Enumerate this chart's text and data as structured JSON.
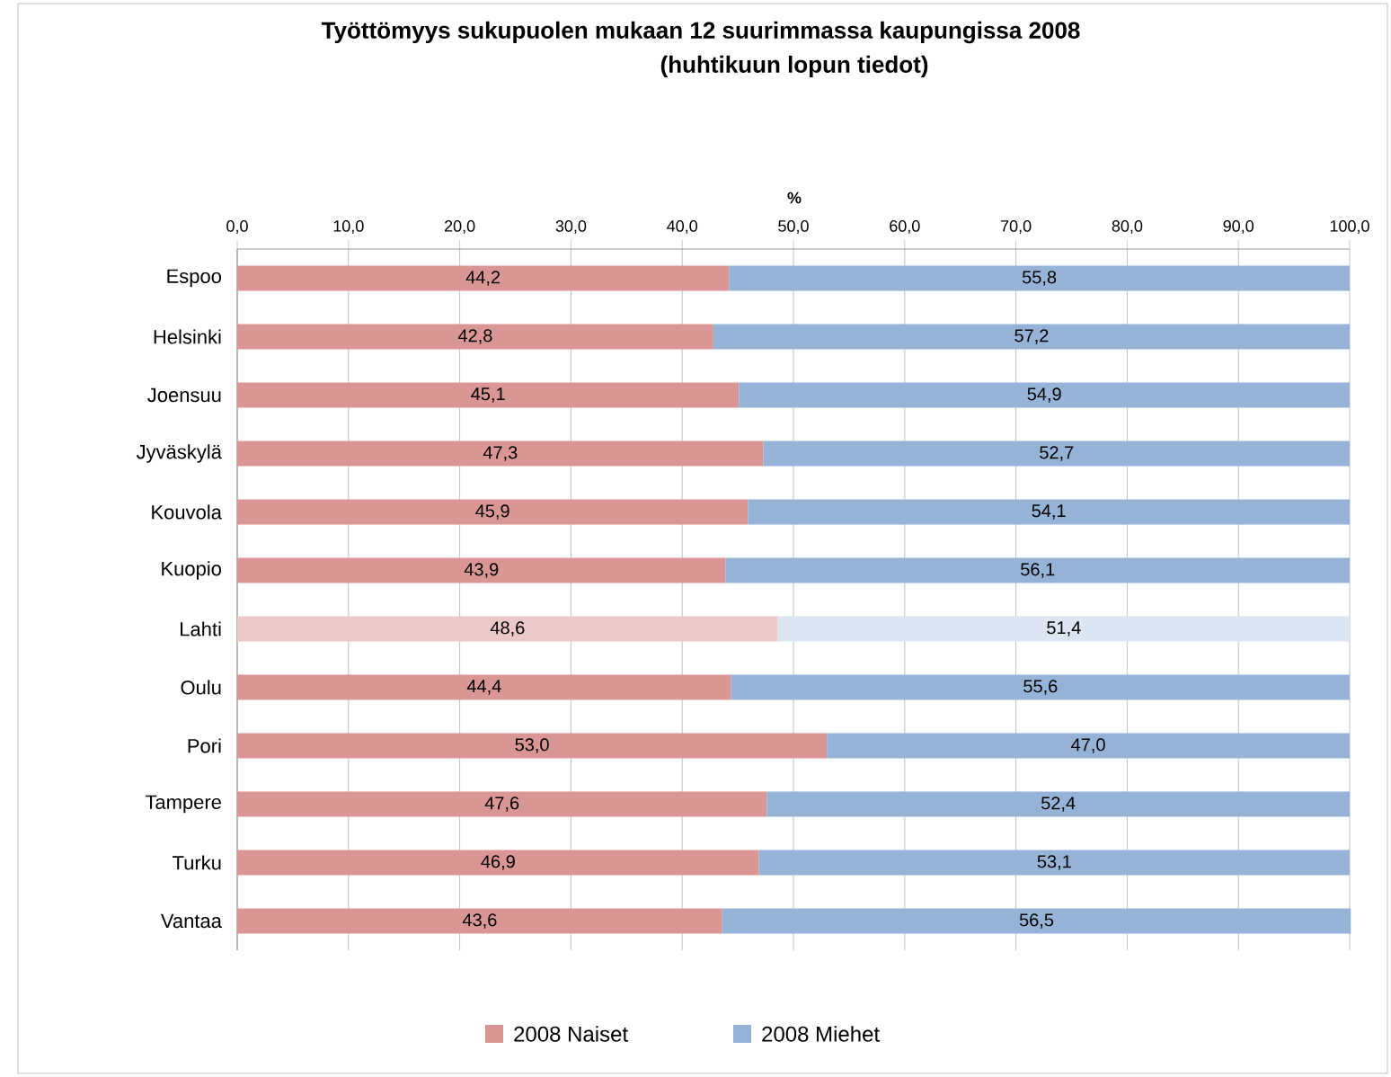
{
  "chart_data": {
    "type": "bar",
    "orientation": "horizontal",
    "stacked": true,
    "title": "Työttömyys sukupuolen mukaan 12 suurimmassa kaupungissa 2008",
    "subtitle": "(huhtikuun lopun tiedot)",
    "xlabel": "%",
    "categories": [
      "Espoo",
      "Helsinki",
      "Joensuu",
      "Jyväskylä",
      "Kouvola",
      "Kuopio",
      "Lahti",
      "Oulu",
      "Pori",
      "Tampere",
      "Turku",
      "Vantaa"
    ],
    "series": [
      {
        "name": "2008 Naiset",
        "color": "#d99694",
        "colors": [
          "#d99694",
          "#d99694",
          "#d99694",
          "#d99694",
          "#d99694",
          "#d99694",
          "#ecc9c8",
          "#d99694",
          "#d99694",
          "#d99694",
          "#d99694",
          "#d99694"
        ],
        "values": [
          44.2,
          42.8,
          45.1,
          47.3,
          45.9,
          43.9,
          48.6,
          44.4,
          53.0,
          47.6,
          46.9,
          43.6
        ],
        "value_labels": [
          "44,2",
          "42,8",
          "45,1",
          "47,3",
          "45,9",
          "43,9",
          "48,6",
          "44,4",
          "53,0",
          "47,6",
          "46,9",
          "43,6"
        ]
      },
      {
        "name": "2008 Miehet",
        "color": "#95b3d7",
        "colors": [
          "#95b3d7",
          "#95b3d7",
          "#95b3d7",
          "#95b3d7",
          "#95b3d7",
          "#95b3d7",
          "#dbe6f2",
          "#95b3d7",
          "#95b3d7",
          "#95b3d7",
          "#95b3d7",
          "#95b3d7"
        ],
        "values": [
          55.8,
          57.2,
          54.9,
          52.7,
          54.1,
          56.1,
          51.4,
          55.6,
          47.0,
          52.4,
          53.1,
          56.5
        ],
        "value_labels": [
          "55,8",
          "57,2",
          "54,9",
          "52,7",
          "54,1",
          "56,1",
          "51,4",
          "55,6",
          "47,0",
          "52,4",
          "53,1",
          "56,5"
        ]
      }
    ],
    "xlim": [
      0,
      100
    ],
    "xticks": [
      {
        "value": 0,
        "label": "0,0"
      },
      {
        "value": 10,
        "label": "10,0"
      },
      {
        "value": 20,
        "label": "20,0"
      },
      {
        "value": 30,
        "label": "30,0"
      },
      {
        "value": 40,
        "label": "40,0"
      },
      {
        "value": 50,
        "label": "50,0"
      },
      {
        "value": 60,
        "label": "60,0"
      },
      {
        "value": 70,
        "label": "70,0"
      },
      {
        "value": 80,
        "label": "80,0"
      },
      {
        "value": 90,
        "label": "90,0"
      },
      {
        "value": 100,
        "label": "100,0"
      }
    ],
    "grid": "x",
    "legend": "bottom"
  }
}
